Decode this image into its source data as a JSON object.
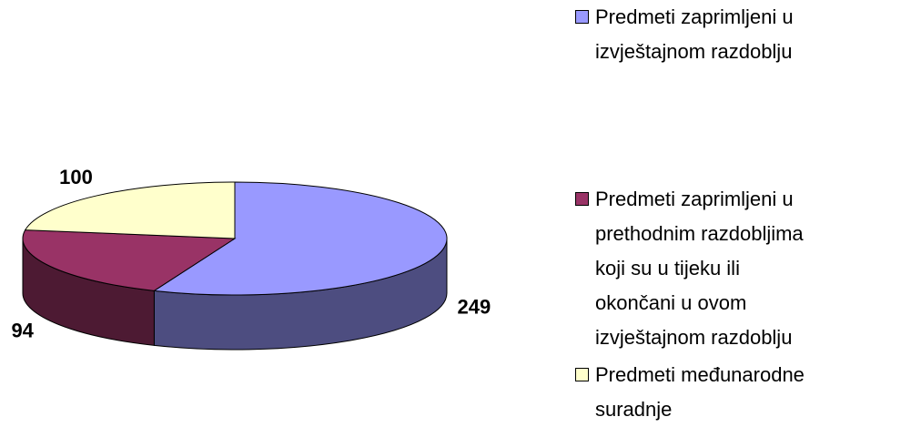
{
  "chart_data": {
    "type": "pie3d",
    "categories": [
      "Predmeti zaprimljeni u izvještajnom razdoblju",
      "Predmeti zaprimljeni u prethodnim razdobljima koji su u tijeku ili okončani u ovom izvještajnom razdoblju",
      "Predmeti međunarodne suradnje"
    ],
    "values": [
      249,
      94,
      100
    ],
    "colors": [
      "#9999ff",
      "#993366",
      "#ffffcc"
    ],
    "legend": "right"
  }
}
